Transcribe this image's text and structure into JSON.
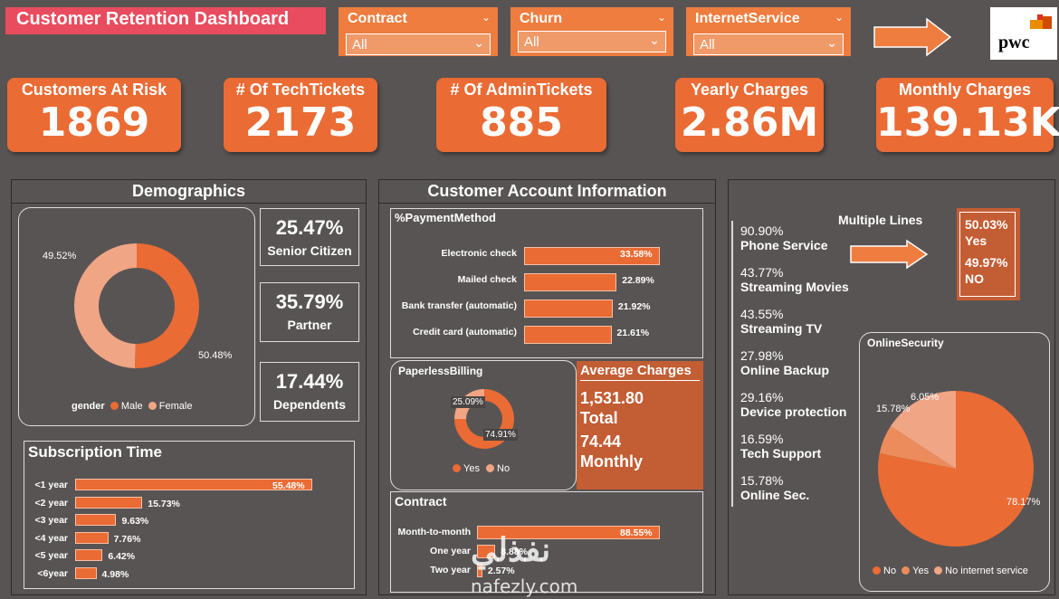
{
  "title": "Customer Retention Dashboard",
  "slicers": [
    {
      "label": "Contract",
      "value": "All"
    },
    {
      "label": "Churn",
      "value": "All"
    },
    {
      "label": "InternetService",
      "value": "All"
    }
  ],
  "logo": {
    "text": "pwc"
  },
  "kpis": [
    {
      "label": "Customers At Risk",
      "value": "1869"
    },
    {
      "label": "# Of TechTickets",
      "value": "2173"
    },
    {
      "label": "# Of AdminTickets",
      "value": "885"
    },
    {
      "label": "Yearly Charges",
      "value": "2.86M"
    },
    {
      "label": "Monthly Charges",
      "value": "139.13K"
    }
  ],
  "demographics": {
    "title": "Demographics",
    "gender_chart": {
      "legend_title": "gender",
      "male_label": "Male",
      "female_label": "Female",
      "male_pct_label": "50.48%",
      "female_pct_label": "49.52%"
    },
    "stats": [
      {
        "value": "25.47%",
        "label": "Senior Citizen"
      },
      {
        "value": "35.79%",
        "label": "Partner"
      },
      {
        "value": "17.44%",
        "label": "Dependents"
      }
    ]
  },
  "subscription": {
    "title": "Subscription Time",
    "items": [
      {
        "label": "<1 year",
        "value": "55.48%"
      },
      {
        "label": "<2 year",
        "value": "15.73%"
      },
      {
        "label": "<3 year",
        "value": "9.63%"
      },
      {
        "label": "<4 year",
        "value": "7.76%"
      },
      {
        "label": "<5 year",
        "value": "6.42%"
      },
      {
        "label": "<6year",
        "value": "4.98%"
      }
    ]
  },
  "account": {
    "title": "Customer Account Information",
    "payment": {
      "title": "%PaymentMethod",
      "items": [
        {
          "label": "Electronic check",
          "value": "33.58%"
        },
        {
          "label": "Mailed check",
          "value": "22.89%"
        },
        {
          "label": "Bank transfer (automatic)",
          "value": "21.92%"
        },
        {
          "label": "Credit card (automatic)",
          "value": "21.61%"
        }
      ]
    },
    "paperless": {
      "title": "PaperlessBilling",
      "yes_label": "Yes",
      "no_label": "No",
      "yes_pct_label": "74.91%",
      "no_pct_label": "25.09%"
    },
    "avg_charges": {
      "title": "Average Charges",
      "total_value": "1,531.80",
      "total_label": "Total",
      "monthly_value": "74.44",
      "monthly_label": "Monthly"
    },
    "contract": {
      "title": "Contract",
      "items": [
        {
          "label": "Month-to-month",
          "value": "88.55%"
        },
        {
          "label": "One year",
          "value": "8.88%"
        },
        {
          "label": "Two year",
          "value": "2.57%"
        }
      ]
    }
  },
  "services": {
    "items": [
      {
        "value": "90.90%",
        "label": "Phone Service"
      },
      {
        "value": "43.77%",
        "label": "Streaming Movies"
      },
      {
        "value": "43.55%",
        "label": "Streaming TV"
      },
      {
        "value": "27.98%",
        "label": "Online Backup"
      },
      {
        "value": "29.16%",
        "label": "Device protection"
      },
      {
        "value": "16.59%",
        "label": "Tech Support"
      },
      {
        "value": "15.78%",
        "label": "Online Sec."
      }
    ],
    "multiple_lines": {
      "title": "Multiple Lines",
      "yes_value": "50.03%",
      "yes_label": "Yes",
      "no_value": "49.97%",
      "no_label": "NO"
    },
    "online_security": {
      "title": "OnlineSecurity",
      "no_label": "No",
      "yes_label": "Yes",
      "nis_label": "No internet service",
      "no_pct_label": "78.17%",
      "nis_pct_label": "15.78%",
      "yes_pct_label": "6.05%"
    }
  },
  "watermark": {
    "arabic": "نفذلي",
    "latin": "nafezly.com"
  },
  "chart_data": [
    {
      "type": "pie",
      "categories": [
        "Male",
        "Female"
      ],
      "values": [
        50.48,
        49.52
      ]
    },
    {
      "type": "bar",
      "title": "Subscription Time",
      "categories": [
        "<1 year",
        "<2 year",
        "<3 year",
        "<4 year",
        "<5 year",
        "<6year"
      ],
      "values": [
        55.48,
        15.73,
        9.63,
        7.76,
        6.42,
        4.98
      ]
    },
    {
      "type": "bar",
      "title": "%PaymentMethod",
      "categories": [
        "Electronic check",
        "Mailed check",
        "Bank transfer (automatic)",
        "Credit card (automatic)"
      ],
      "values": [
        33.58,
        22.89,
        21.92,
        21.61
      ]
    },
    {
      "type": "pie",
      "title": "PaperlessBilling",
      "categories": [
        "Yes",
        "No"
      ],
      "values": [
        74.91,
        25.09
      ]
    },
    {
      "type": "bar",
      "title": "Contract",
      "categories": [
        "Month-to-month",
        "One year",
        "Two year"
      ],
      "values": [
        88.55,
        8.88,
        2.57
      ]
    },
    {
      "type": "pie",
      "title": "OnlineSecurity",
      "categories": [
        "No",
        "Yes",
        "No internet service"
      ],
      "values": [
        78.17,
        6.05,
        15.78
      ]
    }
  ],
  "colors": {
    "background": "#595454",
    "accent": "#ea6b34",
    "light": "#f0a585",
    "title_bg": "#e84c5e"
  }
}
